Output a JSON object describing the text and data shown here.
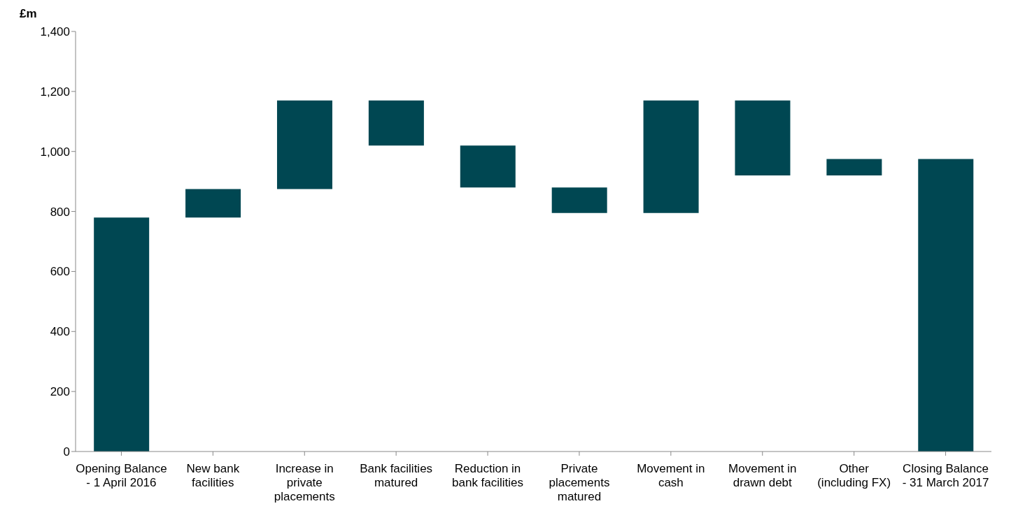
{
  "chart_data": {
    "type": "bar",
    "ylabel": "£m",
    "categories": [
      "Opening Balance - 1 April 2016",
      "New bank facilities",
      "Increase in private placements",
      "Bank facilities matured",
      "Reduction in bank facilities",
      "Private placements matured",
      "Movement in cash",
      "Movement in drawn debt",
      "Other (including FX)",
      "Closing Balance - 31 March 2017"
    ],
    "base": [
      0,
      780,
      875,
      1020,
      880,
      795,
      795,
      920,
      920,
      0
    ],
    "values": [
      780,
      95,
      295,
      150,
      140,
      85,
      375,
      250,
      55,
      975
    ],
    "color": "#004752",
    "ylim": [
      0,
      1400
    ],
    "yticks": [
      {
        "value": 0,
        "label": "0"
      },
      {
        "value": 200,
        "label": "200"
      },
      {
        "value": 400,
        "label": "400"
      },
      {
        "value": 600,
        "label": "600"
      },
      {
        "value": 800,
        "label": "800"
      },
      {
        "value": 1000,
        "label": "1,000"
      },
      {
        "value": 1200,
        "label": "1,200"
      },
      {
        "value": 1400,
        "label": "1,400"
      }
    ],
    "grid": false,
    "legend": false
  }
}
